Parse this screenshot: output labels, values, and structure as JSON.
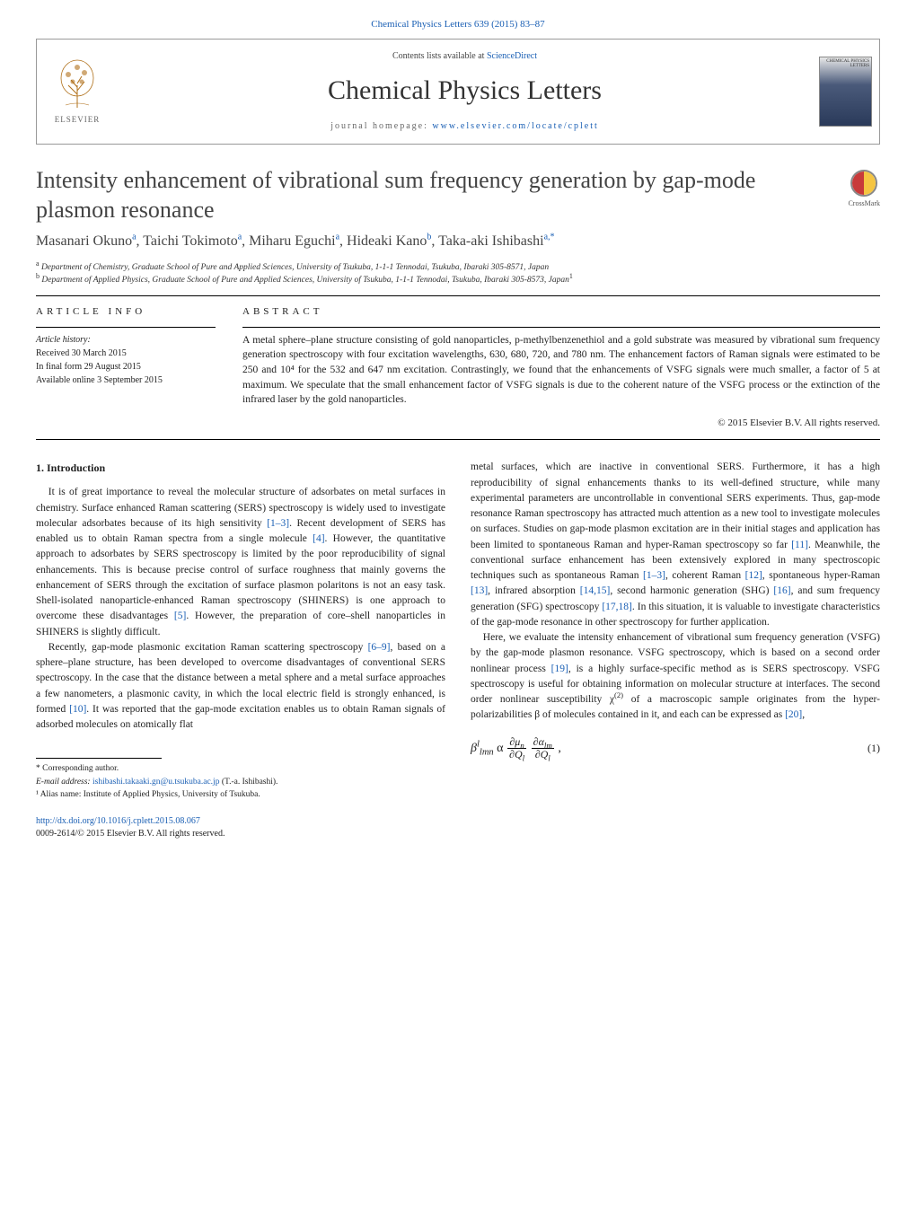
{
  "header": {
    "top_link": "Chemical Physics Letters 639 (2015) 83–87",
    "contents_prefix": "Contents lists available at ",
    "contents_link": "ScienceDirect",
    "journal": "Chemical Physics Letters",
    "homepage_prefix": "journal homepage: ",
    "homepage_url": "www.elsevier.com/locate/cplett",
    "elsevier_label": "ELSEVIER",
    "cover_label": "CHEMICAL\nPHYSICS\nLETTERS"
  },
  "crossmark": {
    "label": "CrossMark"
  },
  "title": "Intensity enhancement of vibrational sum frequency generation by gap-mode plasmon resonance",
  "authors_html": "Masanari Okuno<sup>a</sup>, Taichi Tokimoto<sup>a</sup>, Miharu Eguchi<sup>a</sup>, Hideaki Kano<sup>b</sup>, Taka-aki Ishibashi<sup>a,*</sup>",
  "affiliations": {
    "a": "Department of Chemistry, Graduate School of Pure and Applied Sciences, University of Tsukuba, 1-1-1 Tennodai, Tsukuba, Ibaraki 305-8571, Japan",
    "b_html": "Department of Applied Physics, Graduate School of Pure and Applied Sciences, University of Tsukuba, 1-1-1 Tennodai, Tsukuba, Ibaraki 305-8573, Japan<sup>1</sup>"
  },
  "article_info": {
    "head": "ARTICLE INFO",
    "history_label": "Article history:",
    "received": "Received 30 March 2015",
    "final": "In final form 29 August 2015",
    "online": "Available online 3 September 2015"
  },
  "abstract": {
    "head": "ABSTRACT",
    "body": "A metal sphere–plane structure consisting of gold nanoparticles, p-methylbenzenethiol and a gold substrate was measured by vibrational sum frequency generation spectroscopy with four excitation wavelengths, 630, 680, 720, and 780 nm. The enhancement factors of Raman signals were estimated to be 250 and 10⁴ for the 532 and 647 nm excitation. Contrastingly, we found that the enhancements of VSFG signals were much smaller, a factor of 5 at maximum. We speculate that the small enhancement factor of VSFG signals is due to the coherent nature of the VSFG process or the extinction of the infrared laser by the gold nanoparticles.",
    "copyright": "© 2015 Elsevier B.V. All rights reserved."
  },
  "section1": {
    "head": "1. Introduction"
  },
  "paragraphs": {
    "p1_a": "It is of great importance to reveal the molecular structure of adsorbates on metal surfaces in chemistry. Surface enhanced Raman scattering (SERS) spectroscopy is widely used to investigate molecular adsorbates because of its high sensitivity ",
    "c1": "[1–3]",
    "p1_b": ". Recent development of SERS has enabled us to obtain Raman spectra from a single molecule ",
    "c2": "[4]",
    "p1_c": ". However, the quantitative approach to adsorbates by SERS spectroscopy is limited by the poor reproducibility of signal enhancements. This is because precise control of surface roughness that mainly governs the enhancement of SERS through the excitation of surface plasmon polaritons is not an easy task. Shell-isolated nanoparticle-enhanced Raman spectroscopy (SHINERS) is one approach to overcome these disadvantages ",
    "c3": "[5]",
    "p1_d": ". However, the preparation of core–shell nanoparticles in SHINERS is slightly difficult.",
    "p2_a": "Recently, gap-mode plasmonic excitation Raman scattering spectroscopy ",
    "c4": "[6–9]",
    "p2_b": ", based on a sphere–plane structure, has been developed to overcome disadvantages of conventional SERS spectroscopy. In the case that the distance between a metal sphere and a metal surface approaches a few nanometers, a plasmonic cavity, in which the local electric field is strongly enhanced, is formed ",
    "c5": "[10]",
    "p2_c": ". It was reported that the gap-mode excitation enables us to obtain Raman signals of adsorbed molecules on atomically flat",
    "p3_a": "metal surfaces, which are inactive in conventional SERS. Furthermore, it has a high reproducibility of signal enhancements thanks to its well-defined structure, while many experimental parameters are uncontrollable in conventional SERS experiments. Thus, gap-mode resonance Raman spectroscopy has attracted much attention as a new tool to investigate molecules on surfaces. Studies on gap-mode plasmon excitation are in their initial stages and application has been limited to spontaneous Raman and hyper-Raman spectroscopy so far ",
    "c6": "[11]",
    "p3_b": ". Meanwhile, the conventional surface enhancement has been extensively explored in many spectroscopic techniques such as spontaneous Raman ",
    "c7": "[1–3]",
    "p3_c": ", coherent Raman ",
    "c8": "[12]",
    "p3_d": ", spontaneous hyper-Raman ",
    "c9": "[13]",
    "p3_e": ", infrared absorption ",
    "c10": "[14,15]",
    "p3_f": ", second harmonic generation (SHG) ",
    "c11": "[16]",
    "p3_g": ", and sum frequency generation (SFG) spectroscopy ",
    "c12": "[17,18]",
    "p3_h": ". In this situation, it is valuable to investigate characteristics of the gap-mode resonance in other spectroscopy for further application.",
    "p4_a": "Here, we evaluate the intensity enhancement of vibrational sum frequency generation (VSFG) by the gap-mode plasmon resonance. VSFG spectroscopy, which is based on a second order nonlinear process ",
    "c13": "[19]",
    "p4_b": ", is a highly surface-specific method as is SERS spectroscopy. VSFG spectroscopy is useful for obtaining information on molecular structure at interfaces. The second order nonlinear susceptibility χ",
    "p4_sup": "(2)",
    "p4_c": " of a macroscopic sample originates from the hyper-polarizabilities β of molecules contained in it, and each can be expressed as ",
    "c14": "[20]",
    "p4_d": ","
  },
  "equation": {
    "num": "(1)"
  },
  "footnotes": {
    "corr": "* Corresponding author.",
    "email_label": "E-mail address: ",
    "email": "ishibashi.takaaki.gn@u.tsukuba.ac.jp",
    "email_who": " (T.-a. Ishibashi).",
    "alias": "¹ Alias name: Institute of Applied Physics, University of Tsukuba."
  },
  "doi": {
    "url": "http://dx.doi.org/10.1016/j.cplett.2015.08.067",
    "issn_line": "0009-2614/© 2015 Elsevier B.V. All rights reserved."
  },
  "colors": {
    "link": "#1a5fb4",
    "text": "#222222",
    "rule": "#000000"
  }
}
